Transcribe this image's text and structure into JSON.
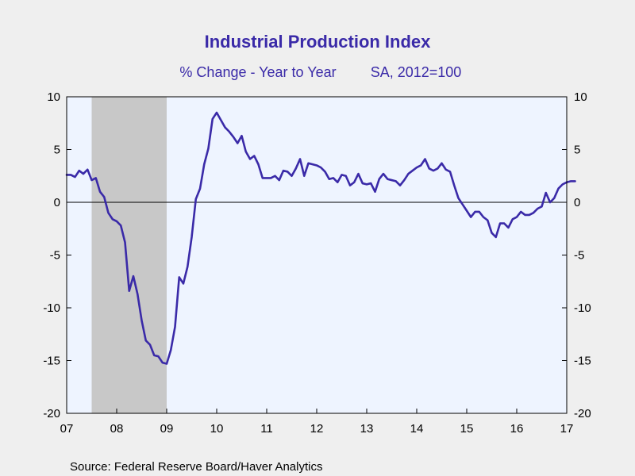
{
  "chart_data": {
    "type": "line",
    "title": "Industrial Production Index",
    "subtitle_left": "% Change - Year to Year",
    "subtitle_right": "SA, 2012=100",
    "source": "Source:  Federal Reserve Board/Haver Analytics",
    "xlabel": "",
    "ylabel": "",
    "x_ticks": [
      "07",
      "08",
      "09",
      "10",
      "11",
      "12",
      "13",
      "14",
      "15",
      "16",
      "17"
    ],
    "x_tick_values": [
      2007,
      2008,
      2009,
      2010,
      2011,
      2012,
      2013,
      2014,
      2015,
      2016,
      2017
    ],
    "y_ticks_left": [
      "10",
      "5",
      "0",
      "-5",
      "-10",
      "-15",
      "-20"
    ],
    "y_ticks_right": [
      "10",
      "5",
      "0",
      "-5",
      "-10",
      "-15",
      "-20"
    ],
    "y_tick_values": [
      10,
      5,
      0,
      -5,
      -10,
      -15,
      -20
    ],
    "xlim": [
      2007,
      2017
    ],
    "ylim": [
      -20,
      10
    ],
    "grid": false,
    "zero_line": true,
    "recession": {
      "start": 2007.5,
      "end": 2009.0
    },
    "colors": {
      "line": "#3a2aa8",
      "title": "#3a2aa8",
      "plot_bg": "#eef4ff",
      "outer_bg": "#efefef",
      "recession": "#c8c8c8"
    },
    "series": [
      {
        "values": [
          {
            "x": 2007.0,
            "y": 2.6
          },
          {
            "x": 2007.083,
            "y": 2.6
          },
          {
            "x": 2007.167,
            "y": 2.4
          },
          {
            "x": 2007.25,
            "y": 3.0
          },
          {
            "x": 2007.333,
            "y": 2.7
          },
          {
            "x": 2007.417,
            "y": 3.1
          },
          {
            "x": 2007.5,
            "y": 2.1
          },
          {
            "x": 2007.583,
            "y": 2.3
          },
          {
            "x": 2007.667,
            "y": 1.0
          },
          {
            "x": 2007.75,
            "y": 0.5
          },
          {
            "x": 2007.833,
            "y": -1.0
          },
          {
            "x": 2007.917,
            "y": -1.6
          },
          {
            "x": 2008.0,
            "y": -1.8
          },
          {
            "x": 2008.083,
            "y": -2.2
          },
          {
            "x": 2008.167,
            "y": -3.8
          },
          {
            "x": 2008.25,
            "y": -8.4
          },
          {
            "x": 2008.333,
            "y": -7.0
          },
          {
            "x": 2008.417,
            "y": -8.7
          },
          {
            "x": 2008.5,
            "y": -11.2
          },
          {
            "x": 2008.583,
            "y": -13.1
          },
          {
            "x": 2008.667,
            "y": -13.5
          },
          {
            "x": 2008.75,
            "y": -14.5
          },
          {
            "x": 2008.833,
            "y": -14.6
          },
          {
            "x": 2008.917,
            "y": -15.2
          },
          {
            "x": 2009.0,
            "y": -15.3
          },
          {
            "x": 2009.083,
            "y": -14.0
          },
          {
            "x": 2009.167,
            "y": -11.8
          },
          {
            "x": 2009.25,
            "y": -7.1
          },
          {
            "x": 2009.333,
            "y": -7.7
          },
          {
            "x": 2009.417,
            "y": -6.1
          },
          {
            "x": 2009.5,
            "y": -3.3
          },
          {
            "x": 2009.583,
            "y": 0.3
          },
          {
            "x": 2009.667,
            "y": 1.3
          },
          {
            "x": 2009.75,
            "y": 3.6
          },
          {
            "x": 2009.833,
            "y": 5.1
          },
          {
            "x": 2009.917,
            "y": 7.9
          },
          {
            "x": 2010.0,
            "y": 8.5
          },
          {
            "x": 2010.083,
            "y": 7.8
          },
          {
            "x": 2010.167,
            "y": 7.1
          },
          {
            "x": 2010.25,
            "y": 6.7
          },
          {
            "x": 2010.333,
            "y": 6.2
          },
          {
            "x": 2010.417,
            "y": 5.6
          },
          {
            "x": 2010.5,
            "y": 6.3
          },
          {
            "x": 2010.583,
            "y": 4.8
          },
          {
            "x": 2010.667,
            "y": 4.1
          },
          {
            "x": 2010.75,
            "y": 4.4
          },
          {
            "x": 2010.833,
            "y": 3.6
          },
          {
            "x": 2010.917,
            "y": 2.3
          },
          {
            "x": 2011.0,
            "y": 2.3
          },
          {
            "x": 2011.083,
            "y": 2.3
          },
          {
            "x": 2011.167,
            "y": 2.5
          },
          {
            "x": 2011.25,
            "y": 2.1
          },
          {
            "x": 2011.333,
            "y": 3.0
          },
          {
            "x": 2011.417,
            "y": 2.9
          },
          {
            "x": 2011.5,
            "y": 2.5
          },
          {
            "x": 2011.583,
            "y": 3.2
          },
          {
            "x": 2011.667,
            "y": 4.1
          },
          {
            "x": 2011.75,
            "y": 2.5
          },
          {
            "x": 2011.833,
            "y": 3.7
          },
          {
            "x": 2011.917,
            "y": 3.6
          },
          {
            "x": 2012.0,
            "y": 3.5
          },
          {
            "x": 2012.083,
            "y": 3.3
          },
          {
            "x": 2012.167,
            "y": 2.9
          },
          {
            "x": 2012.25,
            "y": 2.2
          },
          {
            "x": 2012.333,
            "y": 2.3
          },
          {
            "x": 2012.417,
            "y": 1.9
          },
          {
            "x": 2012.5,
            "y": 2.6
          },
          {
            "x": 2012.583,
            "y": 2.5
          },
          {
            "x": 2012.667,
            "y": 1.6
          },
          {
            "x": 2012.75,
            "y": 1.9
          },
          {
            "x": 2012.833,
            "y": 2.7
          },
          {
            "x": 2012.917,
            "y": 1.8
          },
          {
            "x": 2013.0,
            "y": 1.7
          },
          {
            "x": 2013.083,
            "y": 1.8
          },
          {
            "x": 2013.167,
            "y": 1.0
          },
          {
            "x": 2013.25,
            "y": 2.2
          },
          {
            "x": 2013.333,
            "y": 2.7
          },
          {
            "x": 2013.417,
            "y": 2.2
          },
          {
            "x": 2013.5,
            "y": 2.1
          },
          {
            "x": 2013.583,
            "y": 2.0
          },
          {
            "x": 2013.667,
            "y": 1.6
          },
          {
            "x": 2013.75,
            "y": 2.1
          },
          {
            "x": 2013.833,
            "y": 2.7
          },
          {
            "x": 2013.917,
            "y": 3.0
          },
          {
            "x": 2014.0,
            "y": 3.3
          },
          {
            "x": 2014.083,
            "y": 3.5
          },
          {
            "x": 2014.167,
            "y": 4.1
          },
          {
            "x": 2014.25,
            "y": 3.2
          },
          {
            "x": 2014.333,
            "y": 3.0
          },
          {
            "x": 2014.417,
            "y": 3.2
          },
          {
            "x": 2014.5,
            "y": 3.7
          },
          {
            "x": 2014.583,
            "y": 3.1
          },
          {
            "x": 2014.667,
            "y": 2.9
          },
          {
            "x": 2014.75,
            "y": 1.6
          },
          {
            "x": 2014.833,
            "y": 0.4
          },
          {
            "x": 2014.917,
            "y": -0.2
          },
          {
            "x": 2015.0,
            "y": -0.8
          },
          {
            "x": 2015.083,
            "y": -1.4
          },
          {
            "x": 2015.167,
            "y": -0.9
          },
          {
            "x": 2015.25,
            "y": -0.9
          },
          {
            "x": 2015.333,
            "y": -1.4
          },
          {
            "x": 2015.417,
            "y": -1.7
          },
          {
            "x": 2015.5,
            "y": -2.9
          },
          {
            "x": 2015.583,
            "y": -3.3
          },
          {
            "x": 2015.667,
            "y": -2.0
          },
          {
            "x": 2015.75,
            "y": -2.0
          },
          {
            "x": 2015.833,
            "y": -2.4
          },
          {
            "x": 2015.917,
            "y": -1.6
          },
          {
            "x": 2016.0,
            "y": -1.4
          },
          {
            "x": 2016.083,
            "y": -0.9
          },
          {
            "x": 2016.167,
            "y": -1.2
          },
          {
            "x": 2016.25,
            "y": -1.2
          },
          {
            "x": 2016.333,
            "y": -1.0
          },
          {
            "x": 2016.417,
            "y": -0.6
          },
          {
            "x": 2016.5,
            "y": -0.4
          },
          {
            "x": 2016.583,
            "y": 0.9
          },
          {
            "x": 2016.667,
            "y": 0.0
          },
          {
            "x": 2016.75,
            "y": 0.4
          },
          {
            "x": 2016.833,
            "y": 1.3
          },
          {
            "x": 2016.917,
            "y": 1.7
          },
          {
            "x": 2017.0,
            "y": 1.9
          },
          {
            "x": 2017.083,
            "y": 2.0
          },
          {
            "x": 2017.167,
            "y": 2.0
          }
        ]
      }
    ]
  }
}
